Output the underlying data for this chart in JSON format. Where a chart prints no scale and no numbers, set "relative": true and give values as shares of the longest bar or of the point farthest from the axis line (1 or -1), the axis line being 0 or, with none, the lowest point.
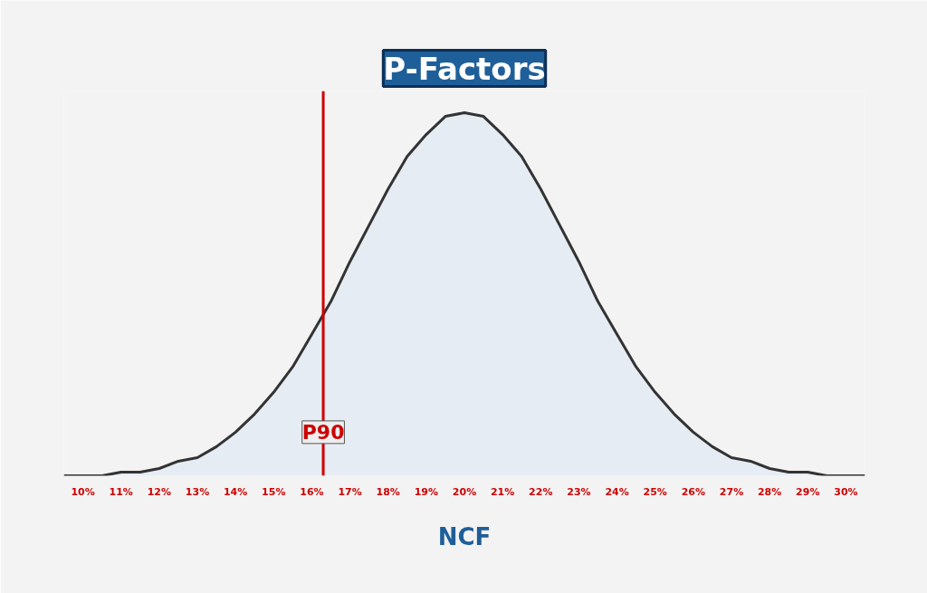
{
  "chart_data": {
    "type": "area",
    "title": "P-Factors",
    "xlabel": "NCF",
    "relative": true,
    "x": [
      9.5,
      10,
      10.5,
      11,
      11.5,
      12,
      12.5,
      13,
      13.5,
      14,
      14.5,
      15,
      15.5,
      16,
      16.5,
      17,
      17.5,
      18,
      18.5,
      19,
      19.5,
      20,
      20.5,
      21,
      21.5,
      22,
      22.5,
      23,
      23.5,
      24,
      24.5,
      25,
      25.5,
      26,
      26.5,
      27,
      27.5,
      28,
      28.5,
      29,
      29.5,
      30,
      30.5
    ],
    "series": [
      {
        "color": "#333333",
        "values": [
          0,
          0,
          0,
          0.01,
          0.01,
          0.02,
          0.04,
          0.05,
          0.08,
          0.12,
          0.17,
          0.23,
          0.3,
          0.39,
          0.48,
          0.59,
          0.69,
          0.79,
          0.88,
          0.94,
          0.99,
          1,
          0.99,
          0.94,
          0.88,
          0.79,
          0.69,
          0.59,
          0.48,
          0.39,
          0.3,
          0.23,
          0.17,
          0.12,
          0.08,
          0.05,
          0.04,
          0.02,
          0.01,
          0.01,
          0,
          0,
          0
        ]
      }
    ],
    "xlim": [
      9.5,
      30.5
    ],
    "xticks": [
      {
        "value": 10,
        "label": "10%"
      },
      {
        "value": 11,
        "label": "11%"
      },
      {
        "value": 12,
        "label": "12%"
      },
      {
        "value": 13,
        "label": "13%"
      },
      {
        "value": 14,
        "label": "14%"
      },
      {
        "value": 15,
        "label": "15%"
      },
      {
        "value": 16,
        "label": "16%"
      },
      {
        "value": 17,
        "label": "17%"
      },
      {
        "value": 18,
        "label": "18%"
      },
      {
        "value": 19,
        "label": "19%"
      },
      {
        "value": 20,
        "label": "20%"
      },
      {
        "value": 21,
        "label": "21%"
      },
      {
        "value": 22,
        "label": "22%"
      },
      {
        "value": 23,
        "label": "23%"
      },
      {
        "value": 24,
        "label": "24%"
      },
      {
        "value": 25,
        "label": "25%"
      },
      {
        "value": 26,
        "label": "26%"
      },
      {
        "value": 27,
        "label": "27%"
      },
      {
        "value": 28,
        "label": "28%"
      },
      {
        "value": 29,
        "label": "29%"
      },
      {
        "value": 30,
        "label": "30%"
      }
    ],
    "ref_lines": [
      {
        "axis": "x",
        "value": 16.3,
        "label": "P90",
        "color": "#cc0000"
      }
    ],
    "grid": false
  }
}
